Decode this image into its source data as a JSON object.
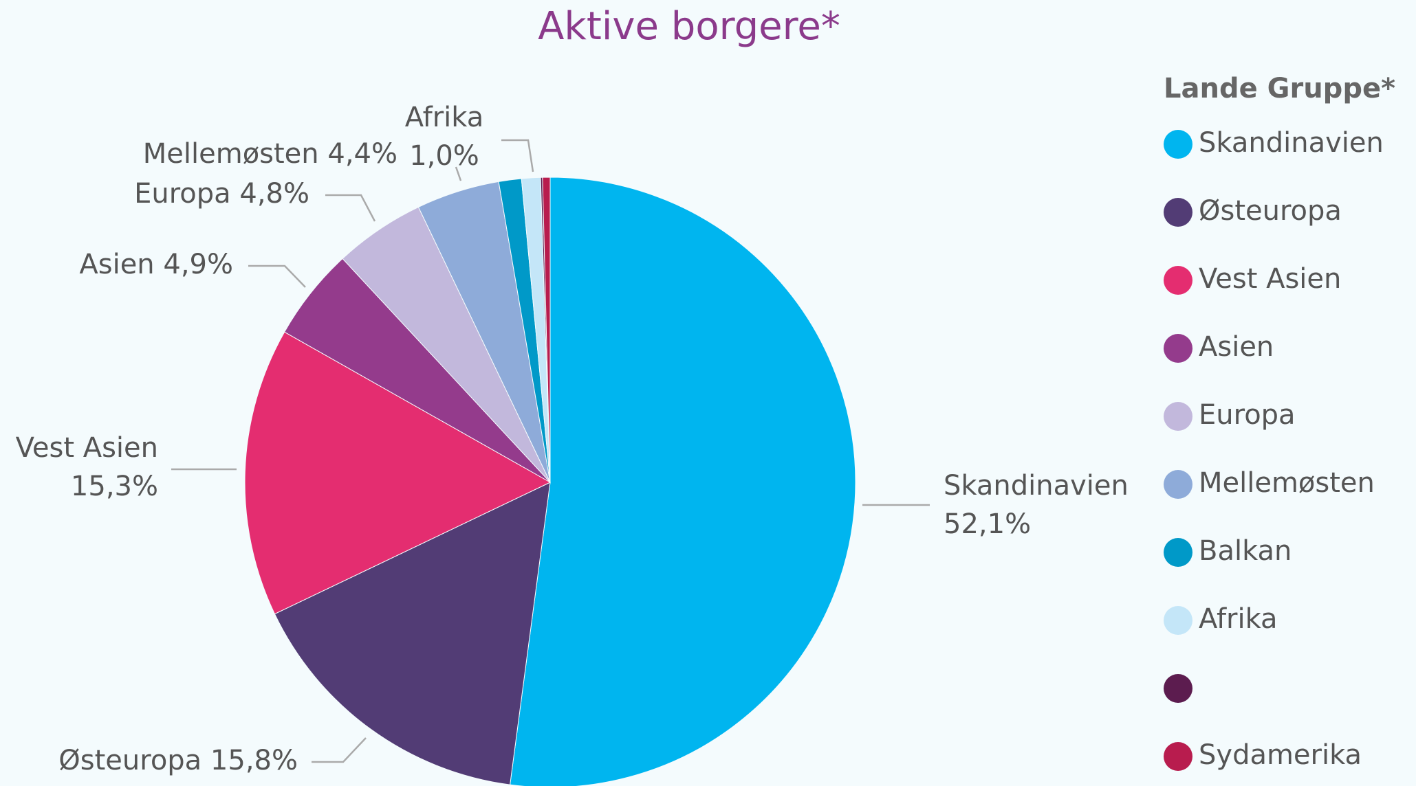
{
  "chart_data": {
    "type": "pie",
    "title": "Aktive borgere*",
    "legend_title": "Lande Gruppe*",
    "categories": [
      "Skandinavien",
      "Østeuropa",
      "Vest Asien",
      "Asien",
      "Europa",
      "Mellemøsten",
      "Balkan",
      "Afrika",
      null,
      "Sydamerika"
    ],
    "values": [
      52.1,
      15.8,
      15.3,
      4.9,
      4.8,
      4.4,
      1.2,
      1.0,
      0.1,
      0.4
    ],
    "value_labels": [
      "52,1%",
      "15,8%",
      "15,3%",
      "4,9%",
      "4,8%",
      "4,4%",
      null,
      "1,0%",
      null,
      null
    ],
    "colors": [
      "#00b5ef",
      "#523c75",
      "#e42d70",
      "#943b8c",
      "#c2b8dc",
      "#8eabd9",
      "#0099c8",
      "#c4e6f8",
      "#5c1c4f",
      "#b81c4e"
    ],
    "legend": "right"
  }
}
